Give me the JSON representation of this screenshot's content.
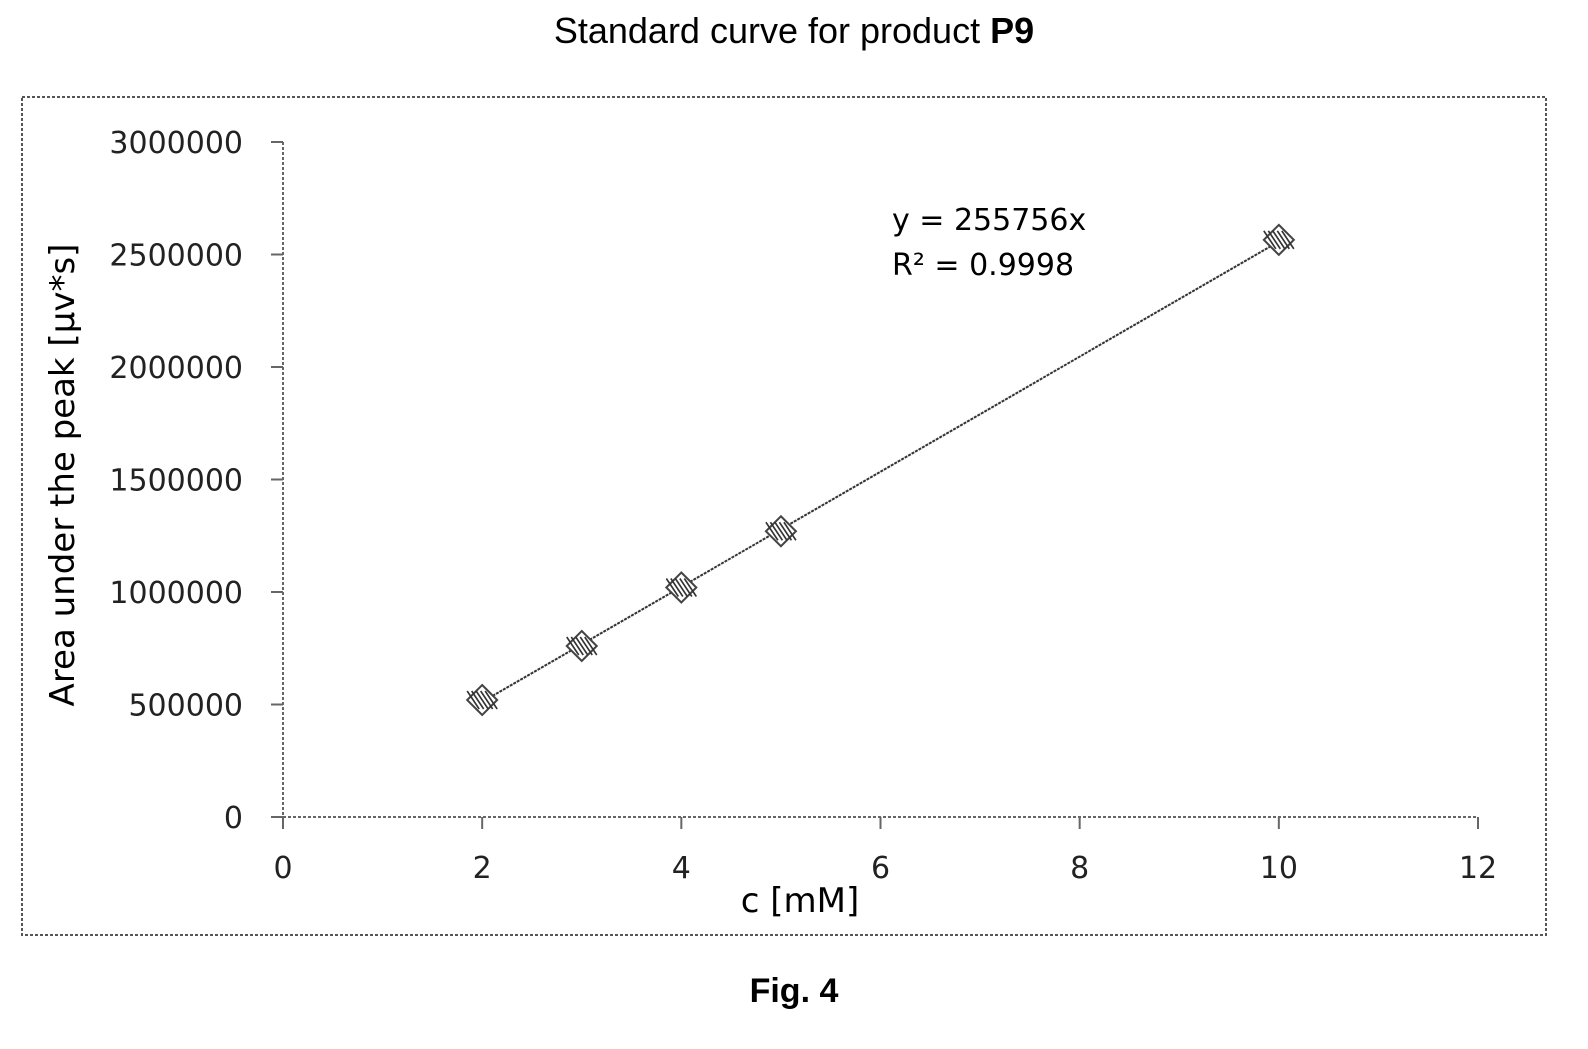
{
  "title": {
    "text": "Standard curve for product ",
    "bold_part": "P9"
  },
  "caption": "Fig. 4",
  "chart_data": {
    "type": "scatter",
    "x": [
      2,
      3,
      4,
      5,
      10
    ],
    "y": [
      520000,
      760000,
      1020000,
      1270000,
      2565000
    ],
    "xlabel": "c [mM]",
    "ylabel": "Area under the peak [µv*s]",
    "xlim": [
      0,
      12
    ],
    "ylim": [
      0,
      3000000
    ],
    "xticks": [
      0,
      2,
      4,
      6,
      8,
      10,
      12
    ],
    "yticks": [
      0,
      500000,
      1000000,
      1500000,
      2000000,
      2500000,
      3000000
    ],
    "trendline": {
      "slope": 255756,
      "intercept": 0,
      "x_range": [
        2,
        10
      ]
    },
    "equation": "y = 255756x",
    "r_squared": "R² = 0.9998",
    "grid": false,
    "border": "dotted"
  }
}
